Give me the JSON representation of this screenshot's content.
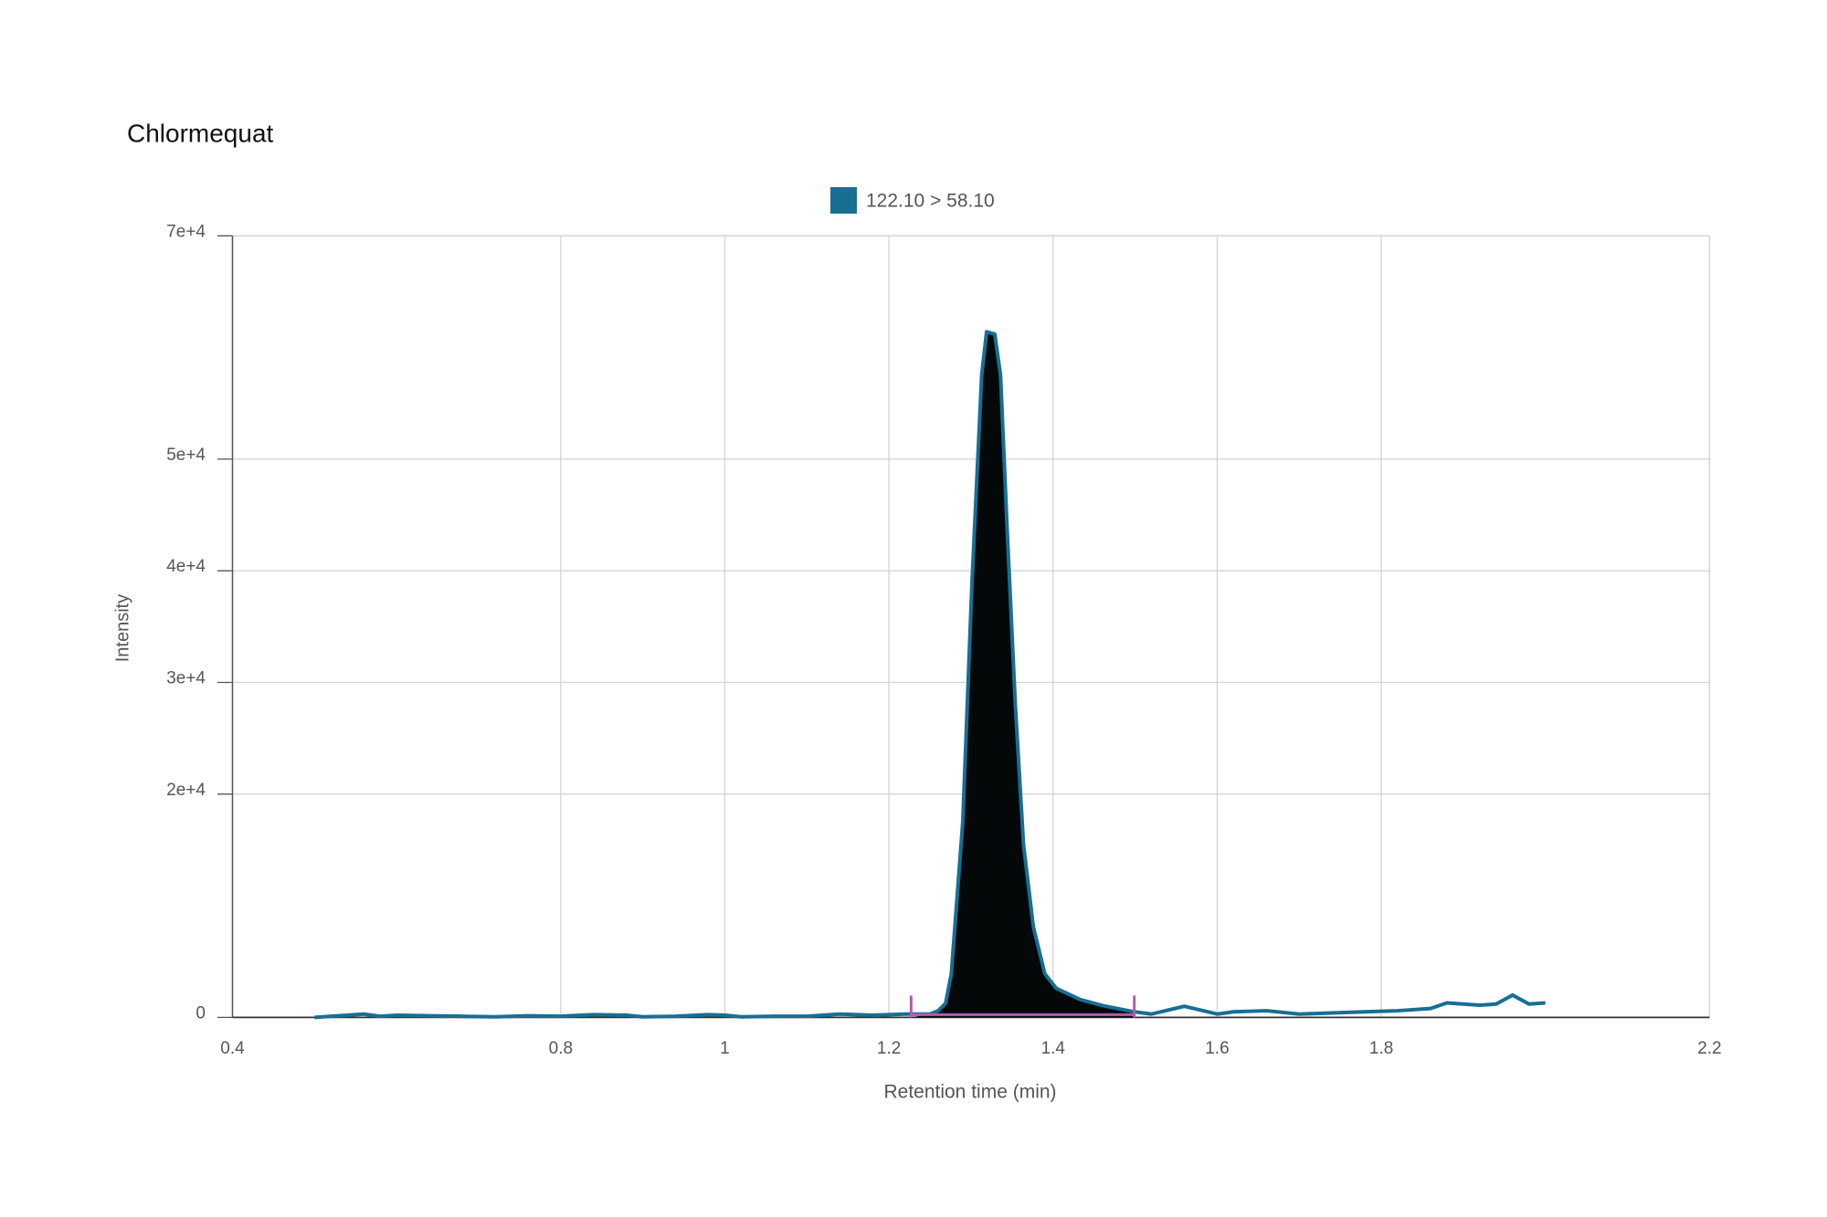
{
  "chart_data": {
    "type": "line",
    "title": "Chlormequat",
    "x_label": "Retention time (min)",
    "y_label": "Intensity",
    "xlim": [
      0.4,
      2.2
    ],
    "xticks": [
      0.4,
      0.8,
      1,
      1.2,
      1.4,
      1.6,
      1.8,
      2.2
    ],
    "ylim": [
      0,
      70000
    ],
    "yticks": [
      0,
      {
        "value": 20000,
        "label": "2e+4"
      },
      {
        "value": 30000,
        "label": "3e+4"
      },
      {
        "value": 40000,
        "label": "4e+4"
      },
      {
        "value": 50000,
        "label": "5e+4"
      },
      {
        "value": 70000,
        "label": "7e+4"
      }
    ],
    "grid": true,
    "integration": {
      "start": 1.227,
      "end": 1.499,
      "color": "#b05cb0",
      "fill": "#050809"
    },
    "series": [
      {
        "name": "122.10 > 58.10",
        "color": "#176f94",
        "x": [
          0.5,
          0.52,
          0.54,
          0.56,
          0.58,
          0.6,
          0.64,
          0.68,
          0.72,
          0.76,
          0.8,
          0.84,
          0.88,
          0.9,
          0.94,
          0.98,
          1.0,
          1.02,
          1.06,
          1.1,
          1.14,
          1.18,
          1.22,
          1.25,
          1.26,
          1.269,
          1.276,
          1.29,
          1.301,
          1.313,
          1.319,
          1.329,
          1.336,
          1.344,
          1.354,
          1.364,
          1.376,
          1.39,
          1.404,
          1.433,
          1.461,
          1.499,
          1.52,
          1.56,
          1.6,
          1.62,
          1.66,
          1.7,
          1.74,
          1.78,
          1.82,
          1.86,
          1.88,
          1.92,
          1.94,
          1.96,
          1.98,
          2.0
        ],
        "values": [
          0,
          100,
          200,
          300,
          100,
          200,
          150,
          100,
          50,
          150,
          100,
          250,
          200,
          50,
          100,
          250,
          200,
          50,
          100,
          100,
          300,
          200,
          300,
          300,
          600,
          1260,
          3900,
          17550,
          38600,
          57500,
          61400,
          61200,
          57500,
          43800,
          28000,
          15450,
          8100,
          3900,
          2600,
          1600,
          1050,
          500,
          300,
          1000,
          300,
          500,
          600,
          300,
          400,
          500,
          600,
          800,
          1300,
          1100,
          1200,
          2000,
          1200,
          1300
        ]
      }
    ]
  }
}
